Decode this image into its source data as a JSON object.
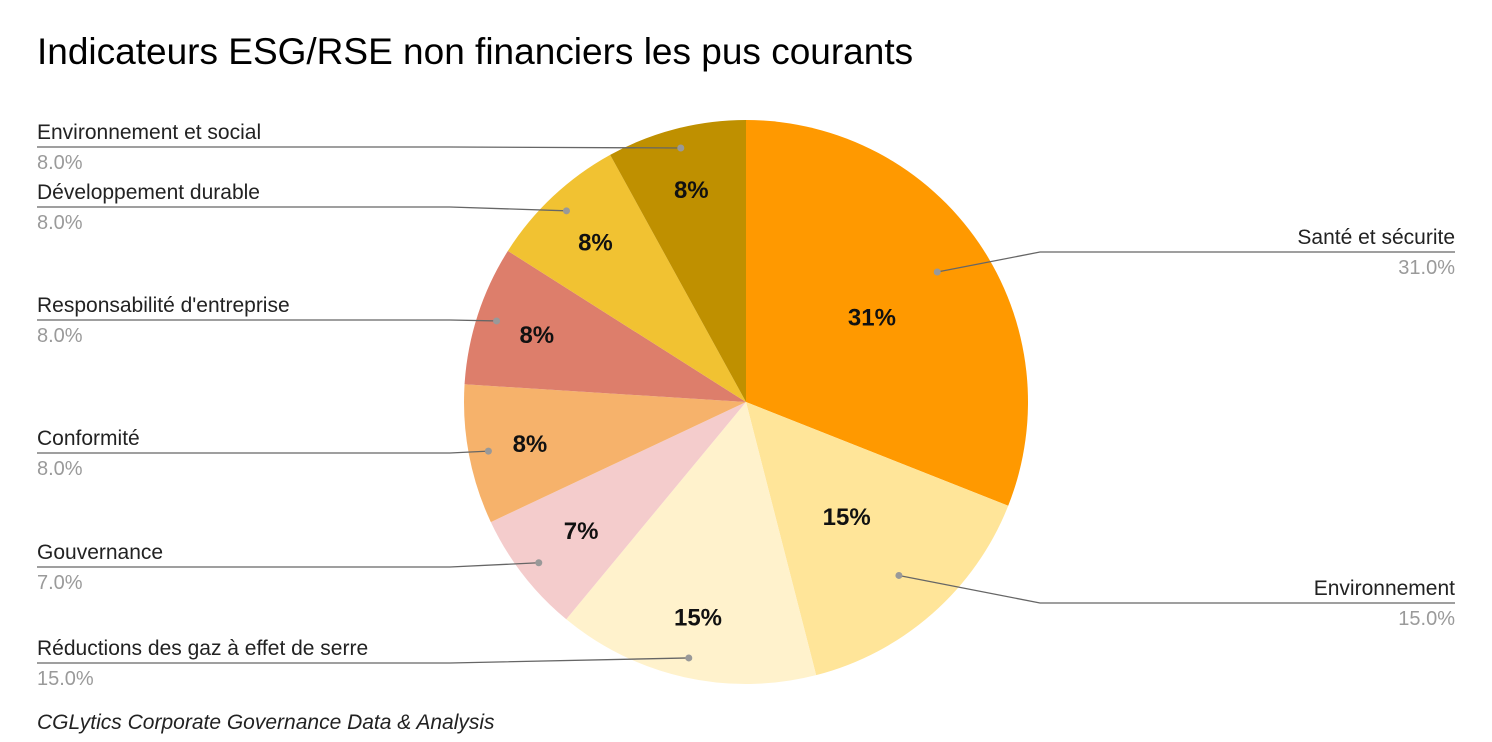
{
  "chart_data": {
    "type": "pie",
    "title": "Indicateurs ESG/RSE non financiers les pus courants",
    "source": "CGLytics Corporate Governance Data & Analysis",
    "slices": [
      {
        "label": "Santé et sécurite",
        "value": 31.0,
        "pct_text": "31.0%",
        "inner_text": "31%",
        "color": "#ff9900"
      },
      {
        "label": "Environnement",
        "value": 15.0,
        "pct_text": "15.0%",
        "inner_text": "15%",
        "color": "#ffe599"
      },
      {
        "label": "Réductions des gaz à effet de serre",
        "value": 15.0,
        "pct_text": "15.0%",
        "inner_text": "15%",
        "color": "#fff2cc"
      },
      {
        "label": "Gouvernance",
        "value": 7.0,
        "pct_text": "7.0%",
        "inner_text": "7%",
        "color": "#f4cccc"
      },
      {
        "label": "Conformité",
        "value": 8.0,
        "pct_text": "8.0%",
        "inner_text": "8%",
        "color": "#f6b26b"
      },
      {
        "label": "Responsabilité d'entreprise",
        "value": 8.0,
        "pct_text": "8.0%",
        "inner_text": "8%",
        "color": "#dd7e6b"
      },
      {
        "label": "Développement durable",
        "value": 8.0,
        "pct_text": "8.0%",
        "inner_text": "8%",
        "color": "#f1c232"
      },
      {
        "label": "Environnement et social",
        "value": 8.0,
        "pct_text": "8.0%",
        "inner_text": "8%",
        "color": "#bf9000"
      }
    ],
    "leader_color": "#666666",
    "dot_color": "#999999"
  }
}
